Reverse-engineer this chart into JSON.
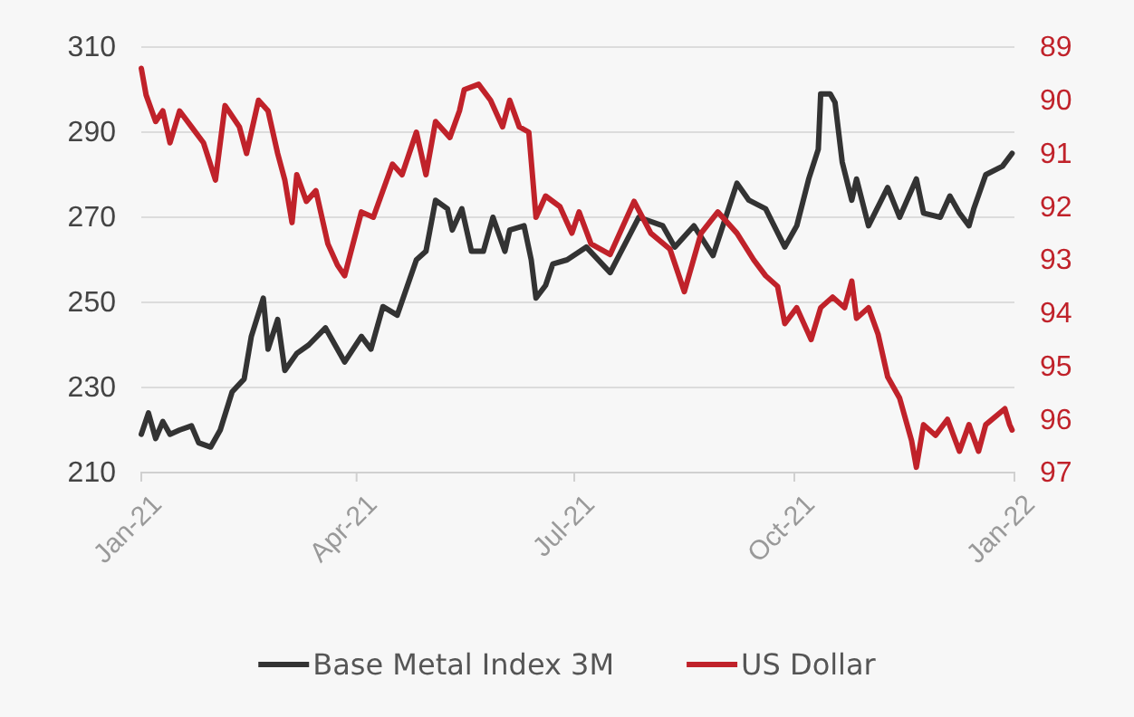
{
  "chart_data": {
    "type": "line",
    "xlim": [
      "2021-01-01",
      "2022-01-01"
    ],
    "xticks": [
      {
        "value": "2021-01-01",
        "label": "Jan-21"
      },
      {
        "value": "2021-04-01",
        "label": "Apr-21"
      },
      {
        "value": "2021-07-01",
        "label": "Jul-21"
      },
      {
        "value": "2021-10-01",
        "label": "Oct-21"
      },
      {
        "value": "2022-01-01",
        "label": "Jan-22"
      }
    ],
    "ylim": [
      210,
      310
    ],
    "yticks": [
      210,
      230,
      250,
      270,
      290,
      310
    ],
    "y2lim": [
      97,
      89
    ],
    "y2ticks": [
      89,
      90,
      91,
      92,
      93,
      94,
      95,
      96,
      97
    ],
    "grid": "y",
    "legend": "bottom",
    "line_style": "solid",
    "marker": "none",
    "series": [
      {
        "name": "Base Metal Index 3M",
        "color": "#333333",
        "x": [
          "2021-01-01",
          "2021-01-04",
          "2021-01-07",
          "2021-01-10",
          "2021-01-13",
          "2021-01-17",
          "2021-01-22",
          "2021-01-25",
          "2021-01-30",
          "2021-02-03",
          "2021-02-08",
          "2021-02-13",
          "2021-02-16",
          "2021-02-21",
          "2021-02-23",
          "2021-02-27",
          "2021-03-02",
          "2021-03-07",
          "2021-03-12",
          "2021-03-19",
          "2021-03-27",
          "2021-04-03",
          "2021-04-07",
          "2021-04-12",
          "2021-04-18",
          "2021-04-26",
          "2021-04-30",
          "2021-05-04",
          "2021-05-09",
          "2021-05-11",
          "2021-05-15",
          "2021-05-19",
          "2021-05-24",
          "2021-05-28",
          "2021-06-02",
          "2021-06-04",
          "2021-06-10",
          "2021-06-13",
          "2021-06-15",
          "2021-06-19",
          "2021-06-22",
          "2021-06-28",
          "2021-07-06",
          "2021-07-16",
          "2021-07-28",
          "2021-08-07",
          "2021-08-12",
          "2021-08-20",
          "2021-08-28",
          "2021-09-07",
          "2021-09-12",
          "2021-09-19",
          "2021-09-27",
          "2021-10-02",
          "2021-10-07",
          "2021-10-11",
          "2021-10-12",
          "2021-10-16",
          "2021-10-18",
          "2021-10-21",
          "2021-10-25",
          "2021-10-27",
          "2021-11-01",
          "2021-11-09",
          "2021-11-14",
          "2021-11-21",
          "2021-11-24",
          "2021-12-01",
          "2021-12-05",
          "2021-12-09",
          "2021-12-13",
          "2021-12-15",
          "2021-12-20",
          "2021-12-27",
          "2021-12-31"
        ],
        "values": [
          219,
          224,
          218,
          222,
          219,
          220,
          221,
          217,
          216,
          220,
          229,
          232,
          242,
          251,
          239,
          246,
          234,
          238,
          240,
          244,
          236,
          242,
          239,
          249,
          247,
          260,
          262,
          274,
          272,
          267,
          272,
          262,
          262,
          270,
          262,
          267,
          268,
          260,
          251,
          254,
          259,
          260,
          263,
          257,
          270,
          268,
          263,
          268,
          261,
          278,
          274,
          272,
          263,
          268,
          279,
          286,
          299,
          299,
          297,
          283,
          274,
          279,
          268,
          277,
          270,
          279,
          271,
          270,
          275,
          271,
          268,
          272,
          280,
          282,
          285
        ]
      },
      {
        "name": "US Dollar",
        "color": "#c0222a",
        "axis": "y2",
        "x": [
          "2021-01-01",
          "2021-01-03",
          "2021-01-07",
          "2021-01-10",
          "2021-01-13",
          "2021-01-17",
          "2021-01-22",
          "2021-01-27",
          "2021-02-01",
          "2021-02-05",
          "2021-02-11",
          "2021-02-14",
          "2021-02-19",
          "2021-02-23",
          "2021-02-27",
          "2021-03-02",
          "2021-03-05",
          "2021-03-07",
          "2021-03-11",
          "2021-03-15",
          "2021-03-20",
          "2021-03-24",
          "2021-03-27",
          "2021-04-03",
          "2021-04-08",
          "2021-04-16",
          "2021-04-20",
          "2021-04-26",
          "2021-04-30",
          "2021-05-04",
          "2021-05-10",
          "2021-05-14",
          "2021-05-16",
          "2021-05-22",
          "2021-05-27",
          "2021-06-01",
          "2021-06-04",
          "2021-06-08",
          "2021-06-12",
          "2021-06-15",
          "2021-06-19",
          "2021-06-25",
          "2021-06-30",
          "2021-07-03",
          "2021-07-08",
          "2021-07-16",
          "2021-07-26",
          "2021-08-02",
          "2021-08-10",
          "2021-08-16",
          "2021-08-23",
          "2021-08-30",
          "2021-09-07",
          "2021-09-14",
          "2021-09-19",
          "2021-09-24",
          "2021-09-27",
          "2021-10-02",
          "2021-10-08",
          "2021-10-12",
          "2021-10-17",
          "2021-10-22",
          "2021-10-25",
          "2021-10-27",
          "2021-11-01",
          "2021-11-05",
          "2021-11-09",
          "2021-11-14",
          "2021-11-19",
          "2021-11-21",
          "2021-11-24",
          "2021-11-29",
          "2021-12-04",
          "2021-12-09",
          "2021-12-13",
          "2021-12-17",
          "2021-12-20",
          "2021-12-28",
          "2021-12-30",
          "2021-12-31"
        ],
        "values": [
          89.4,
          89.9,
          90.4,
          90.2,
          90.8,
          90.2,
          90.5,
          90.8,
          91.5,
          90.1,
          90.5,
          91.0,
          90.0,
          90.2,
          91.0,
          91.5,
          92.3,
          91.4,
          91.9,
          91.7,
          92.7,
          93.1,
          93.3,
          92.1,
          92.2,
          91.2,
          91.4,
          90.6,
          91.4,
          90.4,
          90.7,
          90.2,
          89.8,
          89.7,
          90.0,
          90.5,
          90.0,
          90.5,
          90.6,
          92.2,
          91.8,
          92.0,
          92.5,
          92.1,
          92.7,
          92.9,
          91.9,
          92.5,
          92.8,
          93.6,
          92.5,
          92.1,
          92.5,
          93.0,
          93.3,
          93.5,
          94.2,
          93.9,
          94.5,
          93.9,
          93.7,
          93.9,
          93.4,
          94.1,
          93.9,
          94.4,
          95.2,
          95.6,
          96.4,
          96.9,
          96.1,
          96.3,
          96.0,
          96.6,
          96.1,
          96.6,
          96.1,
          95.8,
          96.1,
          96.2
        ]
      }
    ]
  }
}
